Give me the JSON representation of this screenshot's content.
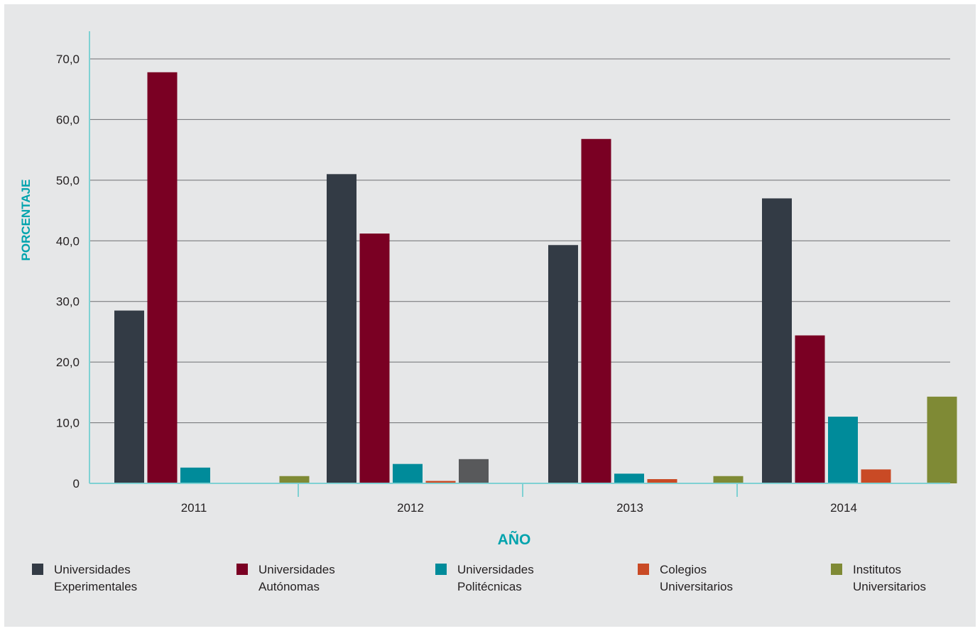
{
  "chart_data": {
    "type": "bar",
    "categories": [
      "2011",
      "2012",
      "2013",
      "2014"
    ],
    "series": [
      {
        "name": "Universidades Experimentales",
        "values": [
          28.5,
          51.0,
          39.3,
          47.0
        ]
      },
      {
        "name": "Universidades Autónomas",
        "values": [
          67.8,
          41.2,
          56.8,
          24.4
        ]
      },
      {
        "name": "Universidades Politécnicas",
        "values": [
          2.6,
          3.2,
          1.6,
          11.0
        ]
      },
      {
        "name": "Colegios Universitarios",
        "values": [
          0,
          0.4,
          0.7,
          2.3
        ]
      },
      {
        "name": "",
        "values": [
          0,
          4.0,
          0,
          0
        ]
      },
      {
        "name": "Institutos Universitarios",
        "values": [
          1.2,
          0,
          1.2,
          14.3
        ]
      }
    ],
    "legend": [
      {
        "line1": "Universidades",
        "line2": "Experimentales",
        "color": "#333b45"
      },
      {
        "line1": "Universidades",
        "line2": "Autónomas",
        "color": "#7a0023"
      },
      {
        "line1": "Universidades",
        "line2": "Politécnicas",
        "color": "#008b9a"
      },
      {
        "line1": "Colegios",
        "line2": "Universitarios",
        "color": "#c94a25"
      },
      {
        "line1": "Institutos",
        "line2": "Universitarios",
        "color": "#7f8a35"
      }
    ],
    "colors": [
      "#333b45",
      "#7a0023",
      "#008b9a",
      "#c94a25",
      "#58595b",
      "#7f8a35"
    ],
    "yticks": [
      "0",
      "10,0",
      "20,0",
      "30,0",
      "40,0",
      "50,0",
      "60,0",
      "70,0"
    ],
    "ylim": [
      0,
      70
    ],
    "xlabel": "AÑO",
    "ylabel": "PORCENTAJE",
    "grid": true,
    "legend_position": "bottom"
  }
}
